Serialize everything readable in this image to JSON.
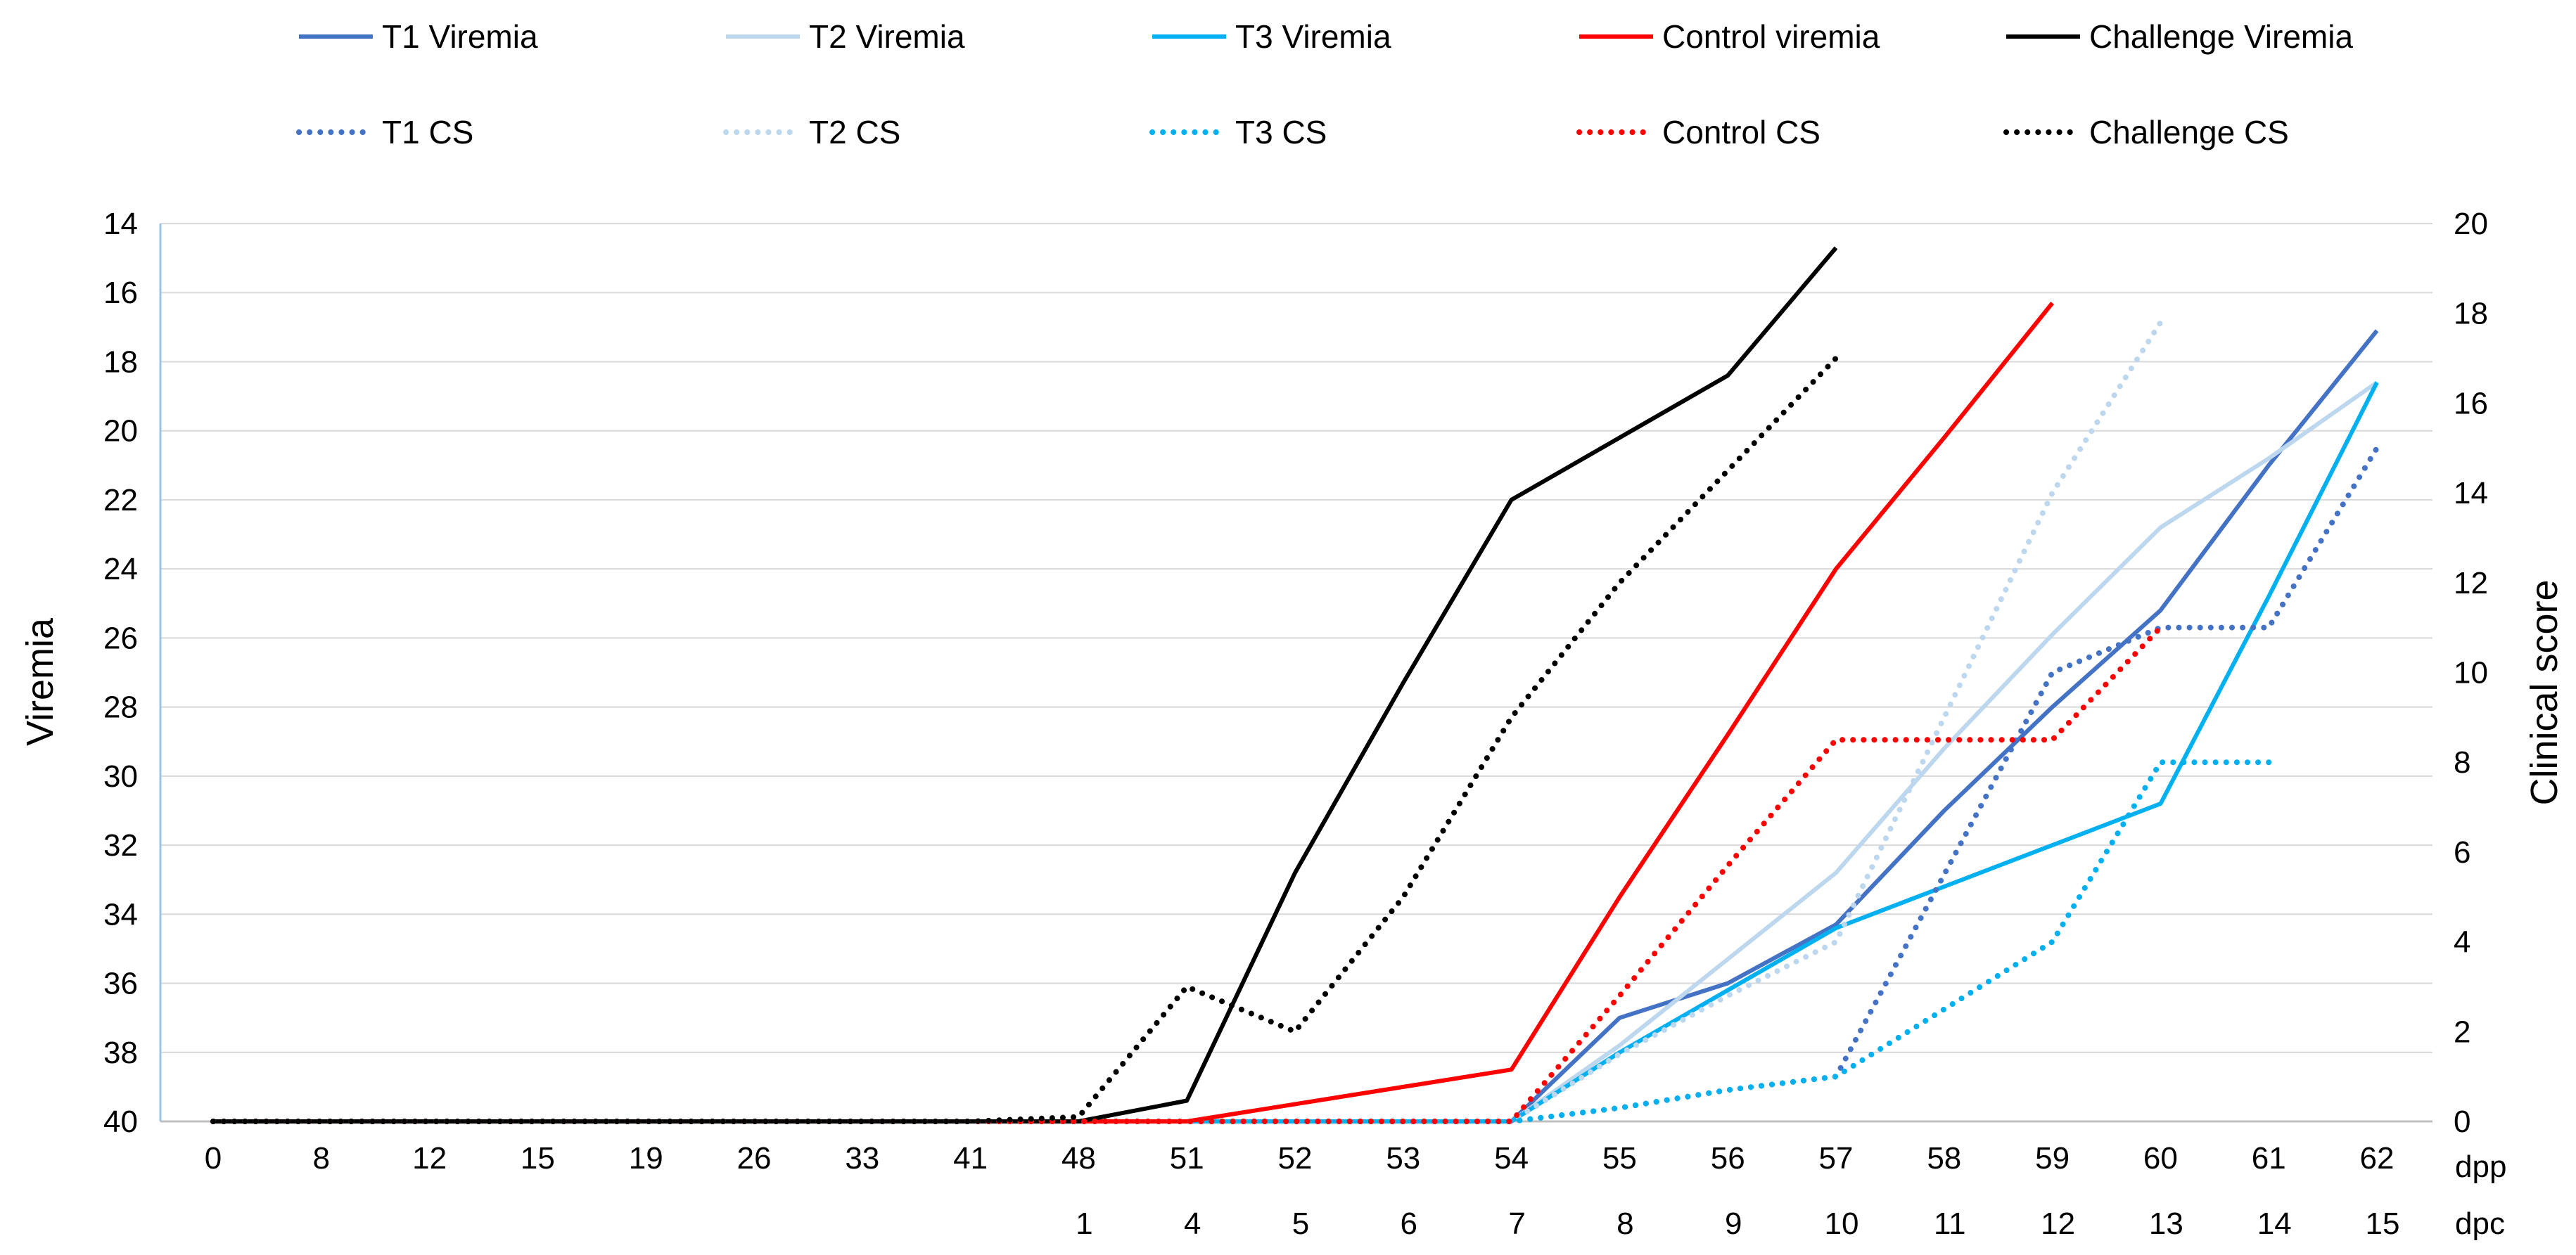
{
  "chart_data": {
    "type": "line",
    "title": "",
    "x_categories": [
      "0",
      "8",
      "12",
      "15",
      "19",
      "26",
      "33",
      "41",
      "48",
      "51",
      "52",
      "53",
      "54",
      "55",
      "56",
      "57",
      "58",
      "59",
      "60",
      "61",
      "62"
    ],
    "x_unit_label": "dpp",
    "dpc_labels": [
      "",
      "",
      "",
      "",
      "",
      "",
      "",
      "",
      "1",
      "4",
      "5",
      "6",
      "7",
      "8",
      "9",
      "10",
      "11",
      "12",
      "13",
      "14",
      "15"
    ],
    "dpc_unit_label": "dpc",
    "left_axis": {
      "label": "Viremia",
      "range": [
        40,
        14
      ],
      "reversed": true,
      "ticks": [
        "14",
        "16",
        "18",
        "20",
        "22",
        "24",
        "26",
        "28",
        "30",
        "32",
        "34",
        "36",
        "38",
        "40"
      ]
    },
    "right_axis": {
      "label": "Clinical score",
      "range": [
        0,
        20
      ],
      "ticks": [
        "0",
        "2",
        "4",
        "6",
        "8",
        "10",
        "12",
        "14",
        "16",
        "18",
        "20"
      ]
    },
    "gridlines": true,
    "legend_position": "top",
    "series": [
      {
        "name": "T1 Viremia",
        "axis": "left",
        "style": "solid",
        "color": "#4472C4",
        "values": [
          40,
          40,
          40,
          40,
          40,
          40,
          40,
          40,
          40,
          40,
          40,
          40,
          40,
          37.0,
          36.0,
          34.3,
          31.0,
          28.0,
          25.2,
          21.0,
          17.1
        ]
      },
      {
        "name": "T2 Viremia",
        "axis": "left",
        "style": "solid",
        "color": "#BDD7EE",
        "values": [
          40,
          40,
          40,
          40,
          40,
          40,
          40,
          40,
          40,
          40,
          40,
          40,
          40,
          37.8,
          35.3,
          32.8,
          29.2,
          25.9,
          22.8,
          20.8,
          18.6
        ]
      },
      {
        "name": "T3 Viremia",
        "axis": "left",
        "style": "solid",
        "color": "#00B0F0",
        "values": [
          40,
          40,
          40,
          40,
          40,
          40,
          40,
          40,
          40,
          40,
          40,
          40,
          40,
          38.0,
          36.2,
          34.4,
          33.2,
          32.0,
          30.8,
          24.8,
          18.6
        ]
      },
      {
        "name": "Control viremia",
        "axis": "left",
        "style": "solid",
        "color": "#FF0000",
        "values": [
          40,
          40,
          40,
          40,
          40,
          40,
          40,
          40,
          40,
          40,
          39.5,
          39.0,
          38.5,
          33.5,
          28.8,
          24.0,
          20.2,
          16.3,
          null,
          null,
          null
        ]
      },
      {
        "name": "Challenge Viremia",
        "axis": "left",
        "style": "solid",
        "color": "#000000",
        "values": [
          40,
          40,
          40,
          40,
          40,
          40,
          40,
          40,
          40,
          39.4,
          32.8,
          27.3,
          22.0,
          20.2,
          18.4,
          14.7,
          null,
          null,
          null,
          null,
          null
        ]
      },
      {
        "name": "T1 CS",
        "axis": "right",
        "style": "dotted",
        "color": "#4472C4",
        "values": [
          0,
          0,
          0,
          0,
          0,
          0,
          0,
          0,
          0,
          0,
          0,
          0,
          0,
          0.3,
          0.7,
          1,
          5.5,
          10,
          11,
          11,
          15
        ]
      },
      {
        "name": "T2 CS",
        "axis": "right",
        "style": "dotted",
        "color": "#BDD7EE",
        "values": [
          0,
          0,
          0,
          0,
          0,
          0,
          0,
          0,
          0,
          0,
          0,
          0,
          0,
          1.5,
          2.8,
          4,
          9,
          14,
          17.8,
          null,
          null
        ]
      },
      {
        "name": "T3 CS",
        "axis": "right",
        "style": "dotted",
        "color": "#00B0F0",
        "values": [
          0,
          0,
          0,
          0,
          0,
          0,
          0,
          0,
          0,
          0,
          0,
          0,
          0,
          0.3,
          0.7,
          1,
          2.5,
          4,
          8,
          8,
          null
        ]
      },
      {
        "name": "Control CS",
        "axis": "right",
        "style": "dotted",
        "color": "#FF0000",
        "values": [
          0,
          0,
          0,
          0,
          0,
          0,
          0,
          0,
          0,
          0,
          0,
          0,
          0,
          2.8,
          5.7,
          8.5,
          8.5,
          8.5,
          11,
          null,
          null
        ]
      },
      {
        "name": "Challenge CS",
        "axis": "right",
        "style": "dotted",
        "color": "#000000",
        "values": [
          0,
          0,
          0,
          0,
          0,
          0,
          0,
          0,
          0.1,
          3,
          2,
          5,
          9,
          12,
          14.5,
          17,
          null,
          null,
          null,
          null,
          null
        ]
      }
    ],
    "legend_rows": [
      [
        "T1 Viremia",
        "T2 Viremia",
        "T3 Viremia",
        "Control viremia",
        "Challenge Viremia"
      ],
      [
        "T1 CS",
        "T2 CS",
        "T3 CS",
        "Control CS",
        "Challenge CS"
      ]
    ]
  }
}
